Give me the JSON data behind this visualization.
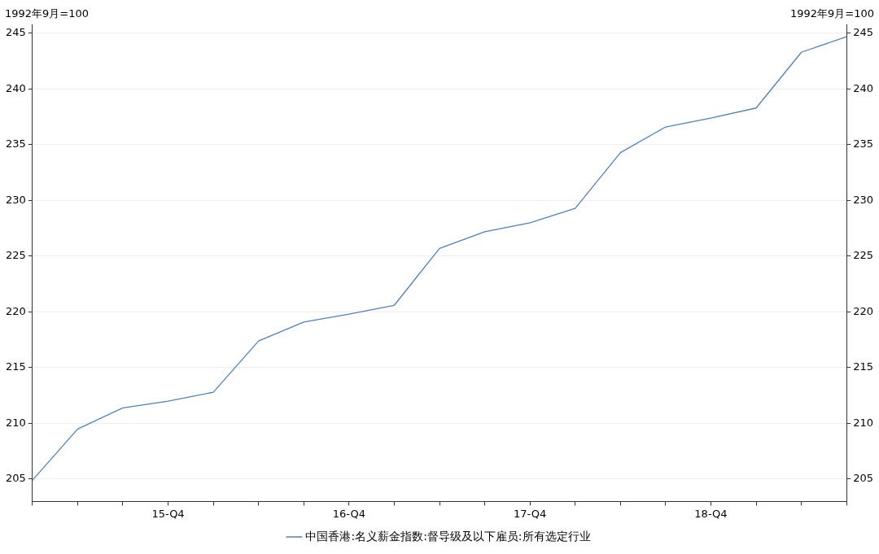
{
  "chart_data": {
    "type": "line",
    "ylabel": "1992年9月=100",
    "y2label": "1992年9月=100",
    "categories": [
      null,
      null,
      null,
      "15-Q4",
      null,
      null,
      null,
      "16-Q4",
      null,
      null,
      null,
      "17-Q4",
      null,
      null,
      null,
      "18-Q4",
      null,
      null,
      null
    ],
    "series": [
      {
        "name": "中国香港:名义薪金指数:督导级及以下雇员:所有选定行业",
        "color": "#4f81bd",
        "values": [
          204.9,
          209.5,
          211.4,
          212.0,
          212.8,
          217.4,
          219.1,
          219.8,
          220.6,
          225.7,
          227.2,
          228.0,
          229.3,
          234.3,
          236.6,
          237.4,
          238.3,
          243.3,
          244.7
        ]
      }
    ],
    "ylim": [
      203,
      245.8
    ],
    "yticks": [
      205,
      210,
      215,
      220,
      225,
      230,
      235,
      240,
      245
    ],
    "y2lim": [
      203,
      245.8
    ],
    "y2ticks": [
      205,
      210,
      215,
      220,
      225,
      230,
      235,
      240,
      245
    ],
    "grid": "y",
    "legend": "bottom",
    "marker": "none",
    "line_style": "solid"
  }
}
